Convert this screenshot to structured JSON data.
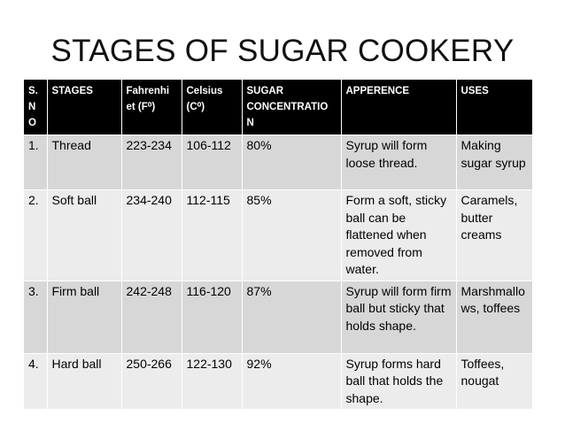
{
  "title": "STAGES OF SUGAR COOKERY",
  "table": {
    "headers": {
      "sno": "S. N O",
      "stages": "STAGES",
      "fahrenheit": "Fahrenhi et (F⁰)",
      "celsius": "Celsius (C⁰)",
      "sugar": "SUGAR CONCENTRATIO N",
      "appearance": "APPERENCE",
      "uses": "USES"
    },
    "rows": [
      {
        "sno": "1.",
        "stage": "Thread",
        "fahrenheit": "223-234",
        "celsius": "106-112",
        "sugar": "80%",
        "appearance": "Syrup will form loose thread.",
        "uses": "Making sugar syrup"
      },
      {
        "sno": "2.",
        "stage": "Soft ball",
        "fahrenheit": "234-240",
        "celsius": "112-115",
        "sugar": "85%",
        "appearance": "Form a soft, sticky ball can be flattened when removed from water.",
        "uses": "Caramels, butter creams"
      },
      {
        "sno": "3.",
        "stage": "Firm ball",
        "fahrenheit": "242-248",
        "celsius": "116-120",
        "sugar": "87%",
        "appearance": "Syrup will form firm ball but sticky that holds shape.",
        "uses": "Marshmallows, toffees"
      },
      {
        "sno": "4.",
        "stage": "Hard ball",
        "fahrenheit": "250-266",
        "celsius": "122-130",
        "sugar": "92%",
        "appearance": "Syrup forms hard ball that holds the shape.",
        "uses": "Toffees, nougat"
      }
    ]
  },
  "colors": {
    "header_bg": "#000000",
    "header_text": "#ffffff",
    "row_odd_bg": "#d7d7d7",
    "row_even_bg": "#ececec"
  }
}
